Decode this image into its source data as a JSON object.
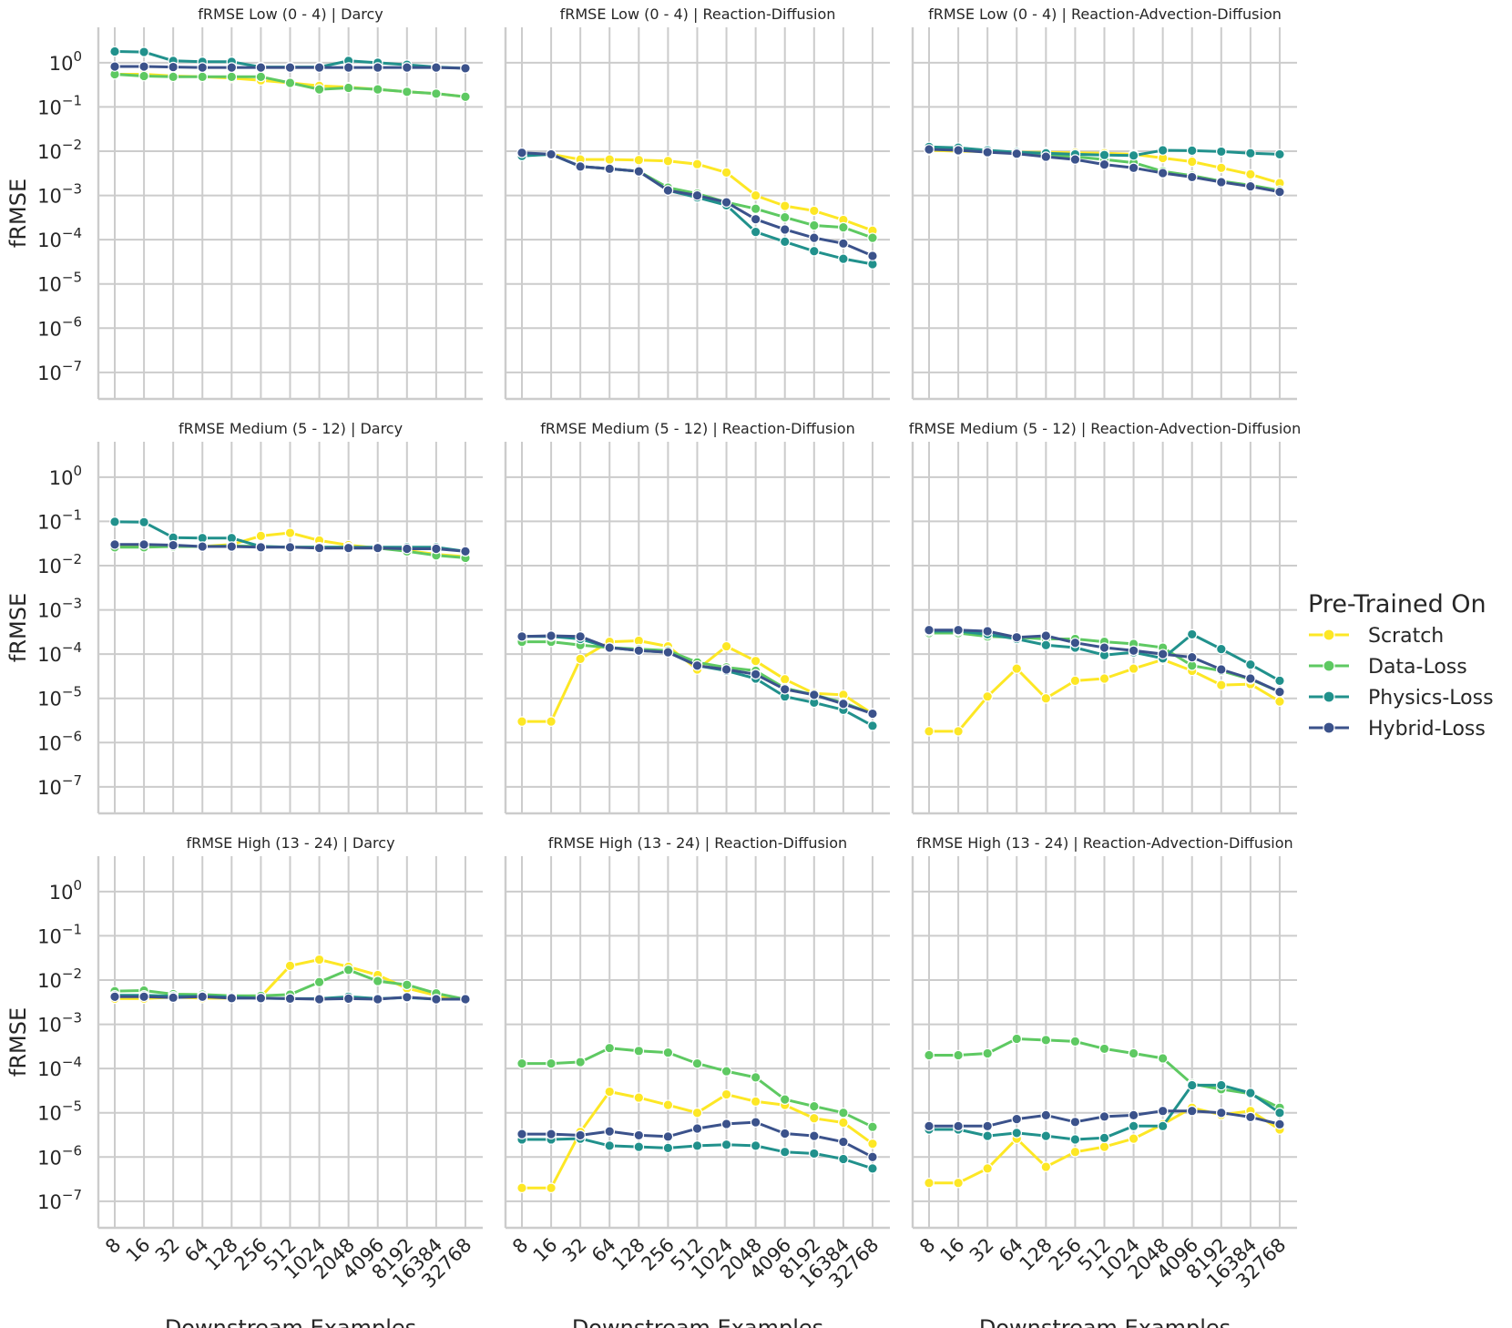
{
  "chart_data": {
    "type": "line",
    "log_y": true,
    "ylabel": "fRMSE",
    "xlabel": "Downstream Examples",
    "x": [
      8,
      16,
      32,
      64,
      128,
      256,
      512,
      1024,
      2048,
      4096,
      8192,
      16384,
      32768
    ],
    "y_ticks": [
      {
        "base": "10",
        "exp": "0",
        "value": 1
      },
      {
        "base": "10",
        "exp": "−1",
        "value": 0.1
      },
      {
        "base": "10",
        "exp": "−2",
        "value": 0.01
      },
      {
        "base": "10",
        "exp": "−3",
        "value": 0.001
      },
      {
        "base": "10",
        "exp": "−4",
        "value": 0.0001
      },
      {
        "base": "10",
        "exp": "−5",
        "value": 1e-05
      },
      {
        "base": "10",
        "exp": "−6",
        "value": 1e-06
      },
      {
        "base": "10",
        "exp": "−7",
        "value": 1e-07
      }
    ],
    "ylim_log10": [
      -7.6,
      0.8
    ],
    "legend": {
      "title": "Pre-Trained On",
      "position": "center-right",
      "entries": [
        {
          "name": "Scratch",
          "color": "#fde725"
        },
        {
          "name": "Data-Loss",
          "color": "#5ec962"
        },
        {
          "name": "Physics-Loss",
          "color": "#21918c"
        },
        {
          "name": "Hybrid-Loss",
          "color": "#3b528b"
        }
      ]
    },
    "panels": [
      {
        "title": "fRMSE Low (0 - 4) | Darcy",
        "series": [
          {
            "name": "Scratch",
            "values": [
              0.55,
              0.55,
              0.5,
              0.48,
              0.45,
              0.4,
              0.35,
              0.3,
              0.28,
              0.25,
              0.22,
              0.2,
              0.17
            ]
          },
          {
            "name": "Data-Loss",
            "values": [
              0.55,
              0.5,
              0.48,
              0.48,
              0.48,
              0.48,
              0.35,
              0.25,
              0.27,
              0.25,
              0.22,
              0.2,
              0.17
            ]
          },
          {
            "name": "Physics-Loss",
            "values": [
              1.8,
              1.75,
              1.1,
              1.05,
              1.05,
              0.8,
              0.8,
              0.8,
              1.1,
              1.0,
              0.9,
              0.8,
              0.75
            ]
          },
          {
            "name": "Hybrid-Loss",
            "values": [
              0.82,
              0.82,
              0.8,
              0.78,
              0.78,
              0.78,
              0.78,
              0.78,
              0.78,
              0.78,
              0.78,
              0.78,
              0.75
            ]
          }
        ]
      },
      {
        "title": "fRMSE Low (0 - 4) | Reaction-Diffusion",
        "series": [
          {
            "name": "Scratch",
            "values": [
              0.0085,
              0.0085,
              0.0065,
              0.0065,
              0.0063,
              0.006,
              0.0051,
              0.0033,
              0.001,
              0.00058,
              0.00045,
              0.00028,
              0.00016
            ]
          },
          {
            "name": "Data-Loss",
            "values": [
              0.008,
              0.0085,
              0.0045,
              0.004,
              0.0035,
              0.0015,
              0.0011,
              0.0007,
              0.0005,
              0.00032,
              0.00021,
              0.00019,
              0.00011
            ]
          },
          {
            "name": "Physics-Loss",
            "values": [
              0.0078,
              0.0085,
              0.0045,
              0.004,
              0.0035,
              0.0013,
              0.0009,
              0.0006,
              0.00015,
              9e-05,
              5.5e-05,
              3.7e-05,
              2.8e-05
            ]
          },
          {
            "name": "Hybrid-Loss",
            "values": [
              0.0092,
              0.0085,
              0.0045,
              0.004,
              0.0035,
              0.0013,
              0.001,
              0.0007,
              0.00029,
              0.00017,
              0.00011,
              8.2e-05,
              4.3e-05
            ]
          }
        ]
      },
      {
        "title": "fRMSE Low (0 - 4) | Reaction-Advection-Diffusion",
        "series": [
          {
            "name": "Scratch",
            "values": [
              0.0105,
              0.01,
              0.0098,
              0.0095,
              0.0095,
              0.0092,
              0.009,
              0.0085,
              0.007,
              0.0058,
              0.0042,
              0.003,
              0.0019
            ]
          },
          {
            "name": "Data-Loss",
            "values": [
              0.012,
              0.0115,
              0.0105,
              0.009,
              0.0082,
              0.0075,
              0.0065,
              0.0055,
              0.0035,
              0.0028,
              0.0021,
              0.0017,
              0.0013
            ]
          },
          {
            "name": "Physics-Loss",
            "values": [
              0.0125,
              0.012,
              0.0105,
              0.0095,
              0.009,
              0.0085,
              0.0082,
              0.008,
              0.0105,
              0.0103,
              0.0098,
              0.009,
              0.0085
            ]
          },
          {
            "name": "Hybrid-Loss",
            "values": [
              0.011,
              0.0105,
              0.0095,
              0.0088,
              0.0075,
              0.0065,
              0.005,
              0.0042,
              0.0032,
              0.0026,
              0.002,
              0.0016,
              0.0012
            ]
          }
        ]
      },
      {
        "title": "fRMSE Medium (5 - 12) | Darcy",
        "series": [
          {
            "name": "Scratch",
            "values": [
              0.028,
              0.028,
              0.027,
              0.027,
              0.03,
              0.047,
              0.055,
              0.037,
              0.029,
              0.025,
              0.022,
              0.018,
              0.016
            ]
          },
          {
            "name": "Data-Loss",
            "values": [
              0.026,
              0.026,
              0.027,
              0.027,
              0.028,
              0.027,
              0.026,
              0.026,
              0.026,
              0.025,
              0.021,
              0.017,
              0.015
            ]
          },
          {
            "name": "Physics-Loss",
            "values": [
              0.098,
              0.096,
              0.043,
              0.042,
              0.042,
              0.027,
              0.026,
              0.026,
              0.026,
              0.026,
              0.026,
              0.026,
              0.021
            ]
          },
          {
            "name": "Hybrid-Loss",
            "values": [
              0.03,
              0.03,
              0.029,
              0.027,
              0.027,
              0.026,
              0.026,
              0.025,
              0.025,
              0.025,
              0.024,
              0.024,
              0.021
            ]
          }
        ]
      },
      {
        "title": "fRMSE Medium (5 - 12) | Reaction-Diffusion",
        "series": [
          {
            "name": "Scratch",
            "values": [
              3e-06,
              3e-06,
              7.8e-05,
              0.00019,
              0.0002,
              0.00015,
              4.5e-05,
              0.00015,
              7e-05,
              2.7e-05,
              1.3e-05,
              1.2e-05,
              4.5e-06
            ]
          },
          {
            "name": "Data-Loss",
            "values": [
              0.00019,
              0.00019,
              0.00016,
              0.00014,
              0.00013,
              0.00012,
              6.5e-05,
              5e-05,
              4.2e-05,
              1.7e-05,
              1.2e-05,
              8e-06,
              4.5e-06
            ]
          },
          {
            "name": "Physics-Loss",
            "values": [
              0.00025,
              0.00025,
              0.00022,
              0.00014,
              0.00012,
              0.00011,
              5.5e-05,
              4.2e-05,
              2.8e-05,
              1.1e-05,
              8e-06,
              5.5e-06,
              2.4e-06
            ]
          },
          {
            "name": "Hybrid-Loss",
            "values": [
              0.00025,
              0.00026,
              0.00025,
              0.00014,
              0.00012,
              0.00011,
              5.5e-05,
              4.5e-05,
              3.5e-05,
              1.6e-05,
              1.2e-05,
              7.5e-06,
              4.5e-06
            ]
          }
        ]
      },
      {
        "title": "fRMSE Medium (5 - 12) | Reaction-Advection-Diffusion",
        "series": [
          {
            "name": "Scratch",
            "values": [
              1.8e-06,
              1.8e-06,
              1.1e-05,
              4.7e-05,
              1e-05,
              2.5e-05,
              2.8e-05,
              4.7e-05,
              7.5e-05,
              4.2e-05,
              2e-05,
              2.1e-05,
              8.5e-06
            ]
          },
          {
            "name": "Data-Loss",
            "values": [
              0.0003,
              0.0003,
              0.00025,
              0.00024,
              0.00022,
              0.00022,
              0.00019,
              0.00017,
              0.00014,
              5.5e-05,
              4.2e-05,
              2.7e-05,
              1.4e-05
            ]
          },
          {
            "name": "Physics-Loss",
            "values": [
              0.00033,
              0.00033,
              0.00028,
              0.00022,
              0.00016,
              0.00014,
              9.5e-05,
              0.00011,
              8e-05,
              0.00028,
              0.00013,
              5.8e-05,
              2.5e-05
            ]
          },
          {
            "name": "Hybrid-Loss",
            "values": [
              0.00035,
              0.00035,
              0.00033,
              0.00024,
              0.00026,
              0.00018,
              0.00014,
              0.00012,
              0.0001,
              8.5e-05,
              4.5e-05,
              2.8e-05,
              1.4e-05
            ]
          }
        ]
      },
      {
        "title": "fRMSE High (13 - 24) | Darcy",
        "series": [
          {
            "name": "Scratch",
            "values": [
              0.0038,
              0.0038,
              0.0041,
              0.0039,
              0.0039,
              0.0042,
              0.021,
              0.029,
              0.02,
              0.013,
              0.0065,
              0.0045,
              0.0035
            ]
          },
          {
            "name": "Data-Loss",
            "values": [
              0.0056,
              0.0058,
              0.0048,
              0.0047,
              0.0044,
              0.0044,
              0.0047,
              0.009,
              0.017,
              0.0095,
              0.0078,
              0.005,
              0.0037
            ]
          },
          {
            "name": "Physics-Loss",
            "values": [
              0.0045,
              0.0045,
              0.0043,
              0.0043,
              0.0041,
              0.0039,
              0.0038,
              0.0038,
              0.0042,
              0.0038,
              0.004,
              0.0037,
              0.0037
            ]
          },
          {
            "name": "Hybrid-Loss",
            "values": [
              0.0042,
              0.0042,
              0.004,
              0.0042,
              0.0039,
              0.0039,
              0.0038,
              0.0037,
              0.0038,
              0.0037,
              0.0041,
              0.0037,
              0.0037
            ]
          }
        ]
      },
      {
        "title": "fRMSE High (13 - 24) | Reaction-Diffusion",
        "series": [
          {
            "name": "Scratch",
            "values": [
              2e-07,
              2e-07,
              3.7e-06,
              3e-05,
              2.2e-05,
              1.5e-05,
              1e-05,
              2.6e-05,
              1.8e-05,
              1.5e-05,
              7.5e-06,
              6e-06,
              2e-06
            ]
          },
          {
            "name": "Data-Loss",
            "values": [
              0.00013,
              0.00013,
              0.00014,
              0.00029,
              0.00025,
              0.00023,
              0.00013,
              8.7e-05,
              6.3e-05,
              2e-05,
              1.4e-05,
              1e-05,
              4.8e-06
            ]
          },
          {
            "name": "Physics-Loss",
            "values": [
              2.5e-06,
              2.5e-06,
              2.6e-06,
              1.8e-06,
              1.7e-06,
              1.6e-06,
              1.8e-06,
              1.9e-06,
              1.8e-06,
              1.3e-06,
              1.2e-06,
              9e-07,
              5.5e-07
            ]
          },
          {
            "name": "Hybrid-Loss",
            "values": [
              3.3e-06,
              3.3e-06,
              3.1e-06,
              3.8e-06,
              3.1e-06,
              2.9e-06,
              4.4e-06,
              5.6e-06,
              6.1e-06,
              3.4e-06,
              3e-06,
              2.2e-06,
              1e-06
            ]
          }
        ]
      },
      {
        "title": "fRMSE High (13 - 24) | Reaction-Advection-Diffusion",
        "series": [
          {
            "name": "Scratch",
            "values": [
              2.6e-07,
              2.6e-07,
              5.5e-07,
              2.6e-06,
              6e-07,
              1.3e-06,
              1.7e-06,
              2.6e-06,
              5.5e-06,
              1.3e-05,
              9e-06,
              1.1e-05,
              4.2e-06
            ]
          },
          {
            "name": "Data-Loss",
            "values": [
              0.0002,
              0.0002,
              0.00022,
              0.00047,
              0.00044,
              0.00041,
              0.00028,
              0.00022,
              0.00017,
              4.5e-05,
              3.4e-05,
              2.7e-05,
              1.3e-05
            ]
          },
          {
            "name": "Physics-Loss",
            "values": [
              4.2e-06,
              4.2e-06,
              3e-06,
              3.5e-06,
              3e-06,
              2.5e-06,
              2.7e-06,
              5e-06,
              5e-06,
              4.2e-05,
              4.2e-05,
              2.8e-05,
              1e-05
            ]
          },
          {
            "name": "Hybrid-Loss",
            "values": [
              5e-06,
              5e-06,
              5e-06,
              7.2e-06,
              8.8e-06,
              6.2e-06,
              8.2e-06,
              8.8e-06,
              1.1e-05,
              1.1e-05,
              1e-05,
              8e-06,
              5.5e-06
            ]
          }
        ]
      }
    ]
  }
}
